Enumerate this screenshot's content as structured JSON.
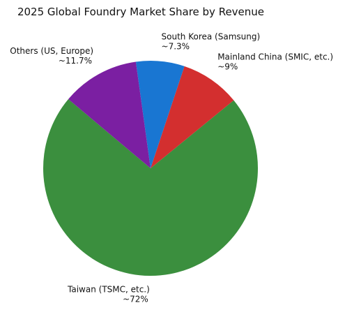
{
  "chart_data": {
    "type": "pie",
    "title": "2025 Global Foundry Market Share by Revenue",
    "categories": [
      "Taiwan (TSMC, etc.)",
      "Mainland China (SMIC, etc.)",
      "South Korea (Samsung)",
      "Others (US, Europe)"
    ],
    "values": [
      72,
      9,
      7.3,
      11.7
    ],
    "value_labels": [
      "~72%",
      "~9%",
      "~7.3%",
      "~11.7%"
    ],
    "colors": [
      "#3b8f3e",
      "#d32f2f",
      "#1976d2",
      "#7b1fa2"
    ]
  }
}
